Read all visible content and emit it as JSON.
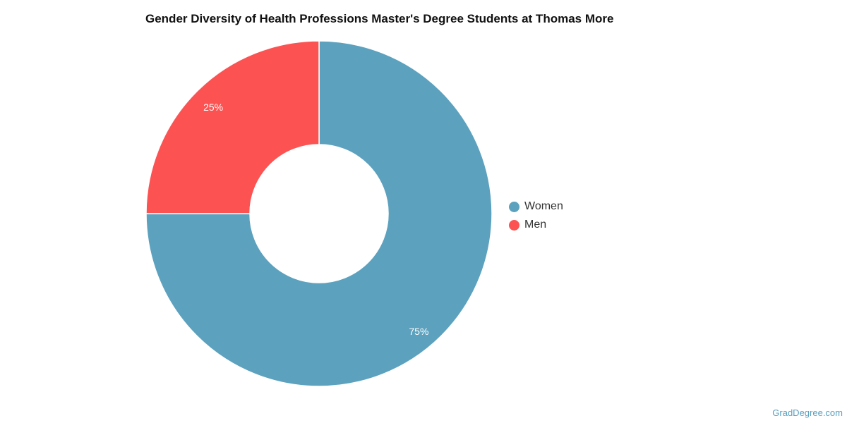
{
  "chart_data": {
    "type": "pie",
    "title": "Gender Diversity of Health Professions Master's Degree Students at Thomas More",
    "series": [
      {
        "name": "Women",
        "value": 75,
        "label": "75%",
        "color": "#5ca1be"
      },
      {
        "name": "Men",
        "value": 25,
        "label": "25%",
        "color": "#fc5252"
      }
    ],
    "legend_placement": "right",
    "donut": true
  },
  "credit": "GradDegree.com"
}
